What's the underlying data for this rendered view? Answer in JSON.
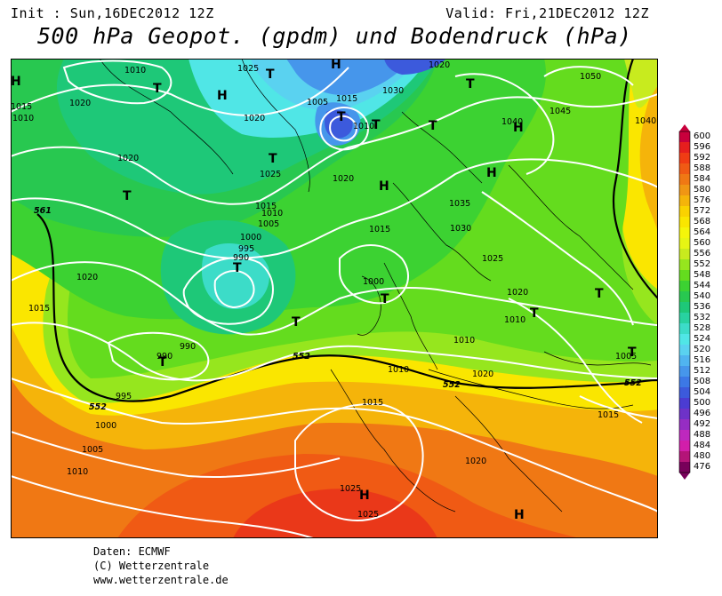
{
  "header": {
    "init": "Init : Sun,16DEC2012 12Z",
    "valid": "Valid: Fri,21DEC2012 12Z",
    "title": "500 hPa Geopot. (gpdm) und Bodendruck (hPa)"
  },
  "footer": {
    "source": "Daten: ECMWF",
    "copyright": "(C) Wetterzentrale",
    "url": "www.wetterzentrale.de"
  },
  "legend": {
    "labels": [
      "600",
      "596",
      "592",
      "588",
      "584",
      "580",
      "576",
      "572",
      "568",
      "564",
      "560",
      "556",
      "552",
      "548",
      "544",
      "540",
      "536",
      "532",
      "528",
      "524",
      "520",
      "516",
      "512",
      "508",
      "504",
      "500",
      "496",
      "492",
      "488",
      "484",
      "480",
      "476"
    ],
    "colors": [
      "#c8003c",
      "#e61e1e",
      "#f03c14",
      "#f05a14",
      "#f07814",
      "#f09614",
      "#f5b40a",
      "#fad200",
      "#fae600",
      "#f5f50a",
      "#e6f514",
      "#c8eb1e",
      "#96e61e",
      "#64dc1e",
      "#3cd232",
      "#28c850",
      "#1ec878",
      "#28d2a0",
      "#3cdcc8",
      "#50e6e6",
      "#5ad2f0",
      "#50b4f0",
      "#4696eb",
      "#3c78e6",
      "#3c5adc",
      "#4b3cd2",
      "#6e32c8",
      "#962dc3",
      "#be28be",
      "#d21eaa",
      "#b41478",
      "#78005a"
    ]
  },
  "map": {
    "pressure_labels": [
      "1010",
      "1025",
      "1030",
      "1020",
      "1050",
      "1015",
      "1010",
      "1005",
      "1015",
      "1010",
      "1020",
      "1020",
      "1040",
      "1045",
      "1040",
      "1020",
      "1025",
      "1020",
      "1015",
      "1010",
      "1005",
      "1035",
      "1030",
      "1025",
      "1020",
      "1015",
      "1000",
      "995",
      "990",
      "1000",
      "1020",
      "1015",
      "990",
      "990",
      "1010",
      "1020",
      "1005",
      "995",
      "1010",
      "1015",
      "1000",
      "1005",
      "1010",
      "1020",
      "1015",
      "1010",
      "1025",
      "1025",
      "1020"
    ],
    "geopot_labels": [
      "561",
      "552",
      "552",
      "552",
      "552"
    ],
    "highs": [
      "H",
      "H",
      "H",
      "H",
      "H",
      "H",
      "H",
      "H"
    ],
    "lows": [
      "T",
      "T",
      "T",
      "T",
      "T",
      "T",
      "T",
      "T",
      "T",
      "T",
      "T",
      "T",
      "T",
      "T",
      "T"
    ]
  }
}
